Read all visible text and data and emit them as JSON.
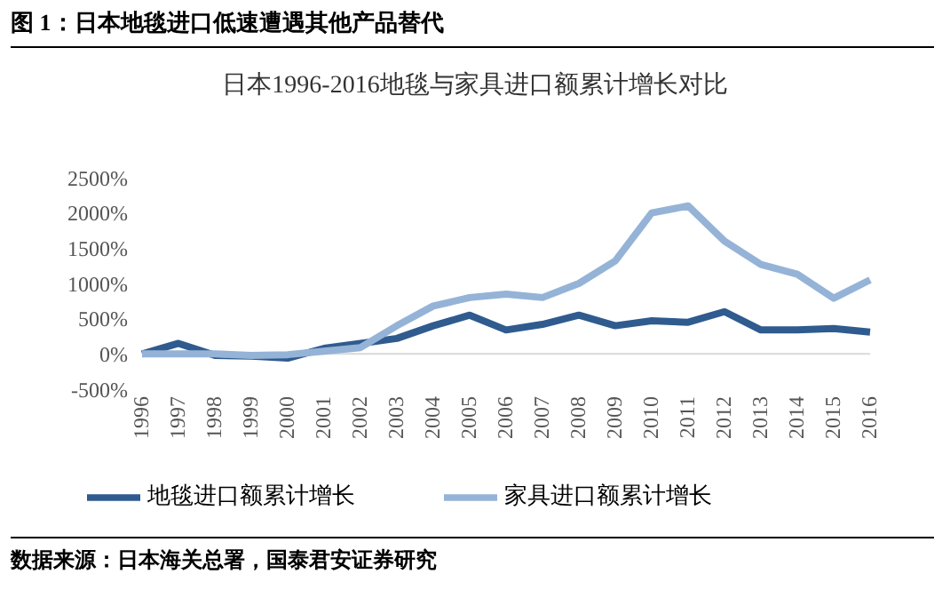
{
  "chart_data": {
    "type": "line",
    "title": "图 1：日本地毯进口低速遭遇其他产品替代",
    "subtitle": "日本1996-2016地毯与家具进口额累计增长对比",
    "categories": [
      "1996",
      "1997",
      "1998",
      "1999",
      "2000",
      "2001",
      "2002",
      "2003",
      "2004",
      "2005",
      "2006",
      "2007",
      "2008",
      "2009",
      "2010",
      "2011",
      "2012",
      "2013",
      "2014",
      "2015",
      "2016"
    ],
    "series": [
      {
        "name": "地毯进口额累计增长",
        "color": "#2f5b8f",
        "values": [
          0,
          150,
          -20,
          -30,
          -60,
          80,
          150,
          220,
          400,
          550,
          340,
          420,
          550,
          400,
          470,
          450,
          600,
          340,
          340,
          360,
          310
        ]
      },
      {
        "name": "家具进口额累计增长",
        "color": "#95b3d7",
        "values": [
          0,
          0,
          0,
          -20,
          -10,
          40,
          90,
          400,
          680,
          800,
          850,
          800,
          1000,
          1320,
          2000,
          2100,
          1600,
          1270,
          1130,
          790,
          1050
        ]
      }
    ],
    "ylim": [
      -500,
      2500
    ],
    "yticks": [
      {
        "value": -500,
        "label": "-500%"
      },
      {
        "value": 0,
        "label": "0%"
      },
      {
        "value": 500,
        "label": "500%"
      },
      {
        "value": 1000,
        "label": "1000%"
      },
      {
        "value": 1500,
        "label": "1500%"
      },
      {
        "value": 2000,
        "label": "2000%"
      },
      {
        "value": 2500,
        "label": "2500%"
      }
    ],
    "grid": false,
    "legend": "bottom",
    "marker": "none",
    "line_style": "solid",
    "annotations": [
      "数据来源：日本海关总署，国泰君安证券研究"
    ]
  }
}
